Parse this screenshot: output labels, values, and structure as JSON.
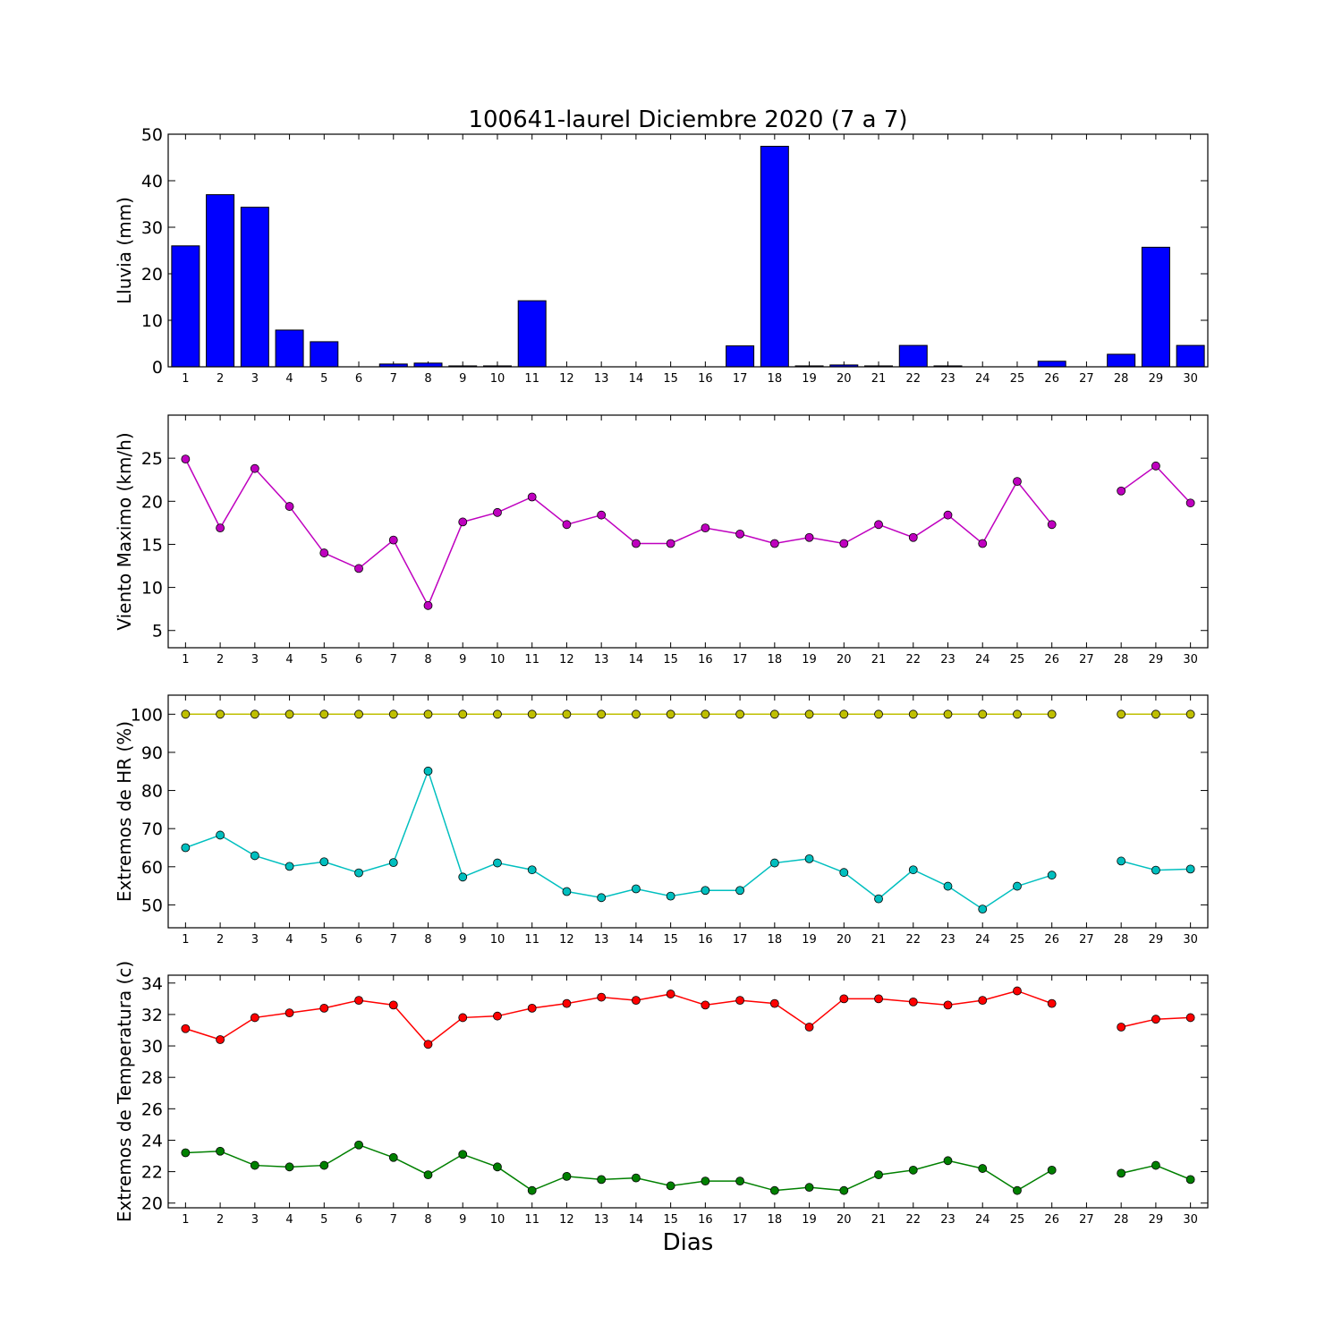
{
  "title": "100641-laurel Diciembre 2020  (7 a 7)",
  "xlabel": "Dias",
  "colors": {
    "rain_bar": "#0000ff",
    "wind": "#bf00bf",
    "hr_max": "#bfbf00",
    "hr_min": "#00bfbf",
    "temp_max": "#ff0000",
    "temp_min": "#008000"
  },
  "chart_data": [
    {
      "type": "bar",
      "ylabel": "Lluvia (mm)",
      "categories": [
        "1",
        "2",
        "3",
        "4",
        "5",
        "6",
        "7",
        "8",
        "9",
        "10",
        "11",
        "12",
        "13",
        "14",
        "15",
        "16",
        "17",
        "18",
        "19",
        "20",
        "21",
        "22",
        "23",
        "24",
        "25",
        "26",
        "27",
        "28",
        "29",
        "30"
      ],
      "ylim": [
        0,
        50
      ],
      "yticks": [
        0,
        10,
        20,
        30,
        40,
        50
      ],
      "series": [
        {
          "values": [
            26.0,
            37.0,
            34.3,
            7.9,
            5.4,
            0,
            0.6,
            0.8,
            0.2,
            0.2,
            14.2,
            0,
            0,
            0,
            0,
            0,
            4.5,
            47.4,
            0.2,
            0.4,
            0.2,
            4.6,
            0.2,
            0,
            0,
            1.2,
            0,
            2.7,
            25.7,
            4.6
          ]
        }
      ]
    },
    {
      "type": "line",
      "ylabel": "Viento Maximo (km/h)",
      "x": [
        1,
        2,
        3,
        4,
        5,
        6,
        7,
        8,
        9,
        10,
        11,
        12,
        13,
        14,
        15,
        16,
        17,
        18,
        19,
        20,
        21,
        22,
        23,
        24,
        25,
        26,
        27,
        28,
        29,
        30
      ],
      "categories": [
        "1",
        "2",
        "3",
        "4",
        "5",
        "6",
        "7",
        "8",
        "9",
        "10",
        "11",
        "12",
        "13",
        "14",
        "15",
        "16",
        "17",
        "18",
        "19",
        "20",
        "21",
        "22",
        "23",
        "24",
        "25",
        "26",
        "27",
        "28",
        "29",
        "30"
      ],
      "ylim": [
        3,
        30
      ],
      "yticks": [
        5,
        10,
        15,
        20,
        25
      ],
      "series": [
        {
          "values": [
            24.9,
            16.9,
            23.8,
            19.4,
            14.0,
            12.2,
            15.5,
            7.9,
            17.6,
            18.7,
            20.5,
            17.3,
            18.4,
            15.1,
            15.1,
            16.9,
            16.2,
            15.1,
            15.8,
            15.1,
            17.3,
            15.8,
            18.4,
            15.1,
            22.3,
            17.3,
            null,
            21.2,
            24.1,
            19.8
          ]
        }
      ]
    },
    {
      "type": "line",
      "ylabel": "Extremos de HR (%)",
      "x": [
        1,
        2,
        3,
        4,
        5,
        6,
        7,
        8,
        9,
        10,
        11,
        12,
        13,
        14,
        15,
        16,
        17,
        18,
        19,
        20,
        21,
        22,
        23,
        24,
        25,
        26,
        27,
        28,
        29,
        30
      ],
      "categories": [
        "1",
        "2",
        "3",
        "4",
        "5",
        "6",
        "7",
        "8",
        "9",
        "10",
        "11",
        "12",
        "13",
        "14",
        "15",
        "16",
        "17",
        "18",
        "19",
        "20",
        "21",
        "22",
        "23",
        "24",
        "25",
        "26",
        "27",
        "28",
        "29",
        "30"
      ],
      "ylim": [
        44,
        105
      ],
      "yticks": [
        50,
        60,
        70,
        80,
        90,
        100
      ],
      "series": [
        {
          "values": [
            100,
            100,
            100,
            100,
            100,
            100,
            100,
            100,
            100,
            100,
            100,
            100,
            100,
            100,
            100,
            100,
            100,
            100,
            100,
            100,
            100,
            100,
            100,
            100,
            100,
            100,
            null,
            100,
            100,
            100
          ]
        },
        {
          "values": [
            65.0,
            68.3,
            62.9,
            60.1,
            61.3,
            58.4,
            61.1,
            85.1,
            57.3,
            61.0,
            59.2,
            53.5,
            51.9,
            54.2,
            52.3,
            53.8,
            53.8,
            61.0,
            62.1,
            58.5,
            51.6,
            59.2,
            54.9,
            48.9,
            54.9,
            57.8,
            null,
            61.5,
            59.1,
            59.4
          ]
        }
      ]
    },
    {
      "type": "line",
      "ylabel": "Extremos de Temperatura (c)",
      "x": [
        1,
        2,
        3,
        4,
        5,
        6,
        7,
        8,
        9,
        10,
        11,
        12,
        13,
        14,
        15,
        16,
        17,
        18,
        19,
        20,
        21,
        22,
        23,
        24,
        25,
        26,
        27,
        28,
        29,
        30
      ],
      "categories": [
        "1",
        "2",
        "3",
        "4",
        "5",
        "6",
        "7",
        "8",
        "9",
        "10",
        "11",
        "12",
        "13",
        "14",
        "15",
        "16",
        "17",
        "18",
        "19",
        "20",
        "21",
        "22",
        "23",
        "24",
        "25",
        "26",
        "27",
        "28",
        "29",
        "30"
      ],
      "ylim": [
        19.7,
        34.5
      ],
      "yticks": [
        20,
        22,
        24,
        26,
        28,
        30,
        32,
        34
      ],
      "series": [
        {
          "values": [
            31.1,
            30.4,
            31.8,
            32.1,
            32.4,
            32.9,
            32.6,
            30.1,
            31.8,
            31.9,
            32.4,
            32.7,
            33.1,
            32.9,
            33.3,
            32.6,
            32.9,
            32.7,
            31.2,
            33.0,
            33.0,
            32.8,
            32.6,
            32.9,
            33.5,
            32.7,
            null,
            31.2,
            31.7,
            31.8
          ]
        },
        {
          "values": [
            23.2,
            23.3,
            22.4,
            22.3,
            22.4,
            23.7,
            22.9,
            21.8,
            23.1,
            22.3,
            20.8,
            21.7,
            21.5,
            21.6,
            21.1,
            21.4,
            21.4,
            20.8,
            21.0,
            20.8,
            21.8,
            22.1,
            22.7,
            22.2,
            20.8,
            22.1,
            null,
            21.9,
            22.4,
            21.5
          ]
        }
      ]
    }
  ]
}
